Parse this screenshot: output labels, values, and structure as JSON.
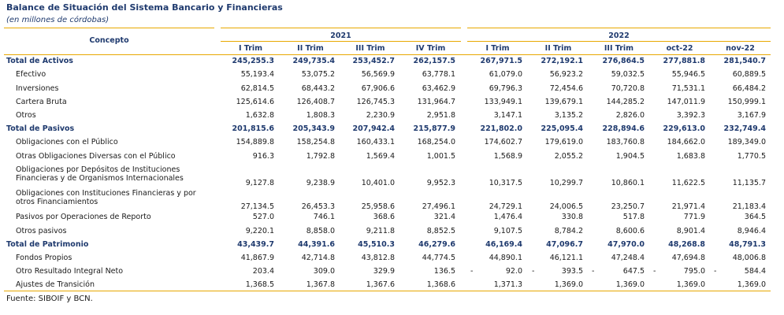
{
  "title": "Balance de Situación del Sistema Bancario y Financieras",
  "subtitle": "(en millones de córdobas)",
  "footer": "Fuente: SIBOIF y BCN.",
  "header": {
    "concepto": "Concepto",
    "year_2021": "2021",
    "year_2022": "2022",
    "periods_2021": [
      "I Trim",
      "II Trim",
      "III Trim",
      "IV Trim"
    ],
    "periods_2022": [
      "I Trim",
      "II Trim",
      "III Trim",
      "oct-22",
      "nov-22"
    ]
  },
  "rows": [
    {
      "label": "Total de Activos",
      "total": true,
      "values": [
        "245,255.3",
        "249,735.4",
        "253,452.7",
        "262,157.5",
        "267,971.5",
        "272,192.1",
        "276,864.5",
        "277,881.8",
        "281,540.7"
      ]
    },
    {
      "label": "Efectivo",
      "values": [
        "55,193.4",
        "53,075.2",
        "56,569.9",
        "63,778.1",
        "61,079.0",
        "56,923.2",
        "59,032.5",
        "55,946.5",
        "60,889.5"
      ]
    },
    {
      "label": "Inversiones",
      "values": [
        "62,814.5",
        "68,443.2",
        "67,906.6",
        "63,462.9",
        "69,796.3",
        "72,454.6",
        "70,720.8",
        "71,531.1",
        "66,484.2"
      ]
    },
    {
      "label": "Cartera Bruta",
      "values": [
        "125,614.6",
        "126,408.7",
        "126,745.3",
        "131,964.7",
        "133,949.1",
        "139,679.1",
        "144,285.2",
        "147,011.9",
        "150,999.1"
      ]
    },
    {
      "label": "Otros",
      "values": [
        "1,632.8",
        "1,808.3",
        "2,230.9",
        "2,951.8",
        "3,147.1",
        "3,135.2",
        "2,826.0",
        "3,392.3",
        "3,167.9"
      ]
    },
    {
      "label": "Total de Pasivos",
      "total": true,
      "values": [
        "201,815.6",
        "205,343.9",
        "207,942.4",
        "215,877.9",
        "221,802.0",
        "225,095.4",
        "228,894.6",
        "229,613.0",
        "232,749.4"
      ]
    },
    {
      "label": "Obligaciones con el Público",
      "values": [
        "154,889.8",
        "158,254.8",
        "160,433.1",
        "168,254.0",
        "174,602.7",
        "179,619.0",
        "183,760.8",
        "184,662.0",
        "189,349.0"
      ]
    },
    {
      "label": "Otras Obligaciones Diversas con el Público",
      "values": [
        "916.3",
        "1,792.8",
        "1,569.4",
        "1,001.5",
        "1,568.9",
        "2,055.2",
        "1,904.5",
        "1,683.8",
        "1,770.5"
      ]
    },
    {
      "label": "Obligaciones por Depósitos de Instituciones Financieras y de Organismos Internacionales",
      "tall": true,
      "values": [
        "9,127.8",
        "9,238.9",
        "10,401.0",
        "9,952.3",
        "10,317.5",
        "10,299.7",
        "10,860.1",
        "11,622.5",
        "11,135.7"
      ]
    },
    {
      "label": "Obligaciones con Instituciones Financieras y por otros Financiamientos",
      "tall": true,
      "values": [
        "27,134.5",
        "26,453.3",
        "25,958.6",
        "27,496.1",
        "24,729.1",
        "24,006.5",
        "23,250.7",
        "21,971.4",
        "21,183.4"
      ]
    },
    {
      "label": "Pasivos por Operaciones de Reporto",
      "values": [
        "527.0",
        "746.1",
        "368.6",
        "321.4",
        "1,476.4",
        "330.8",
        "517.8",
        "771.9",
        "364.5"
      ]
    },
    {
      "label": "Otros pasivos",
      "values": [
        "9,220.1",
        "8,858.0",
        "9,211.8",
        "8,852.5",
        "9,107.5",
        "8,784.2",
        "8,600.6",
        "8,901.4",
        "8,946.4"
      ]
    },
    {
      "label": "Total de Patrimonio",
      "total": true,
      "values": [
        "43,439.7",
        "44,391.6",
        "45,510.3",
        "46,279.6",
        "46,169.4",
        "47,096.7",
        "47,970.0",
        "48,268.8",
        "48,791.3"
      ]
    },
    {
      "label": "Fondos Propios",
      "values": [
        "41,867.9",
        "42,714.8",
        "43,812.8",
        "44,774.5",
        "44,890.1",
        "46,121.1",
        "47,248.4",
        "47,694.8",
        "48,006.8"
      ]
    },
    {
      "label": "Otro Resultado Integral Neto",
      "values": [
        "203.4",
        "309.0",
        "329.9",
        "136.5",
        "92.0",
        "393.5",
        "647.5",
        "795.0",
        "584.4"
      ],
      "neg_marks": [
        "-",
        "-",
        "-",
        "-",
        "-"
      ]
    },
    {
      "label": "Ajustes de Transición",
      "values": [
        "1,368.5",
        "1,367.8",
        "1,367.6",
        "1,368.6",
        "1,371.3",
        "1,369.0",
        "1,369.0",
        "1,369.0",
        "1,369.0"
      ]
    }
  ],
  "colors": {
    "accent_line": "#e8a800",
    "header_text": "#1f3a6e"
  }
}
